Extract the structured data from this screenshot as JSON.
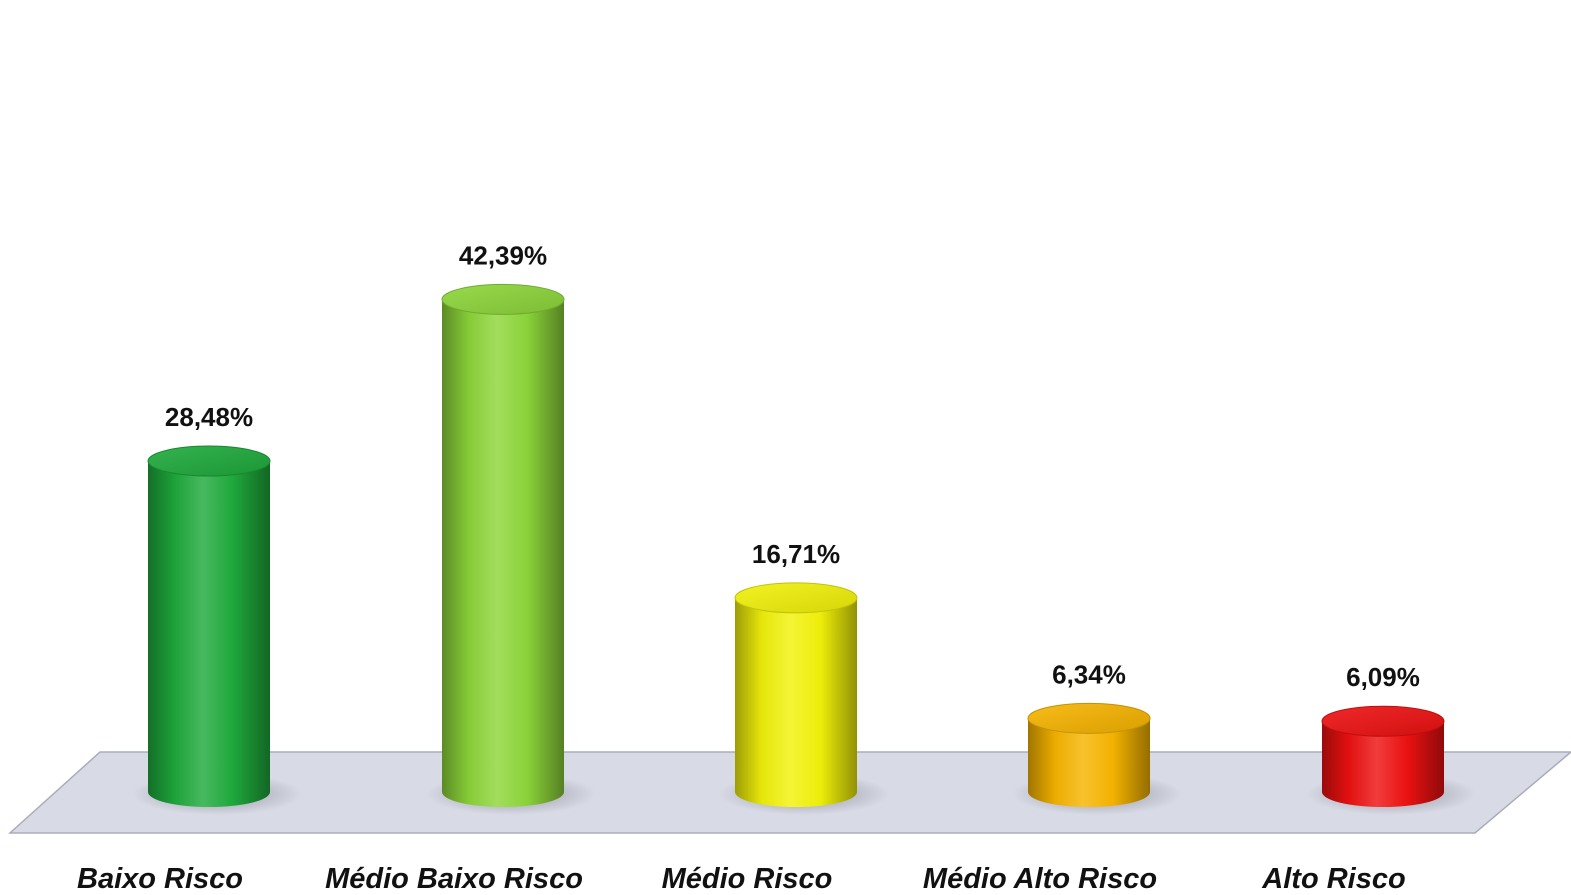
{
  "chart_data": {
    "type": "bar",
    "categories": [
      "Baixo Risco",
      "Médio Baixo Risco",
      "Médio Risco",
      "Médio Alto Risco",
      "Alto Risco"
    ],
    "values": [
      28.48,
      42.39,
      16.71,
      6.34,
      6.09
    ],
    "value_labels": [
      "28,48%",
      "42,39%",
      "16,71%",
      "6,34%",
      "6,09%"
    ],
    "colors": [
      "#1faa3c",
      "#8dd63a",
      "#f2f20a",
      "#f7b500",
      "#ee1111"
    ],
    "title": "",
    "xlabel": "",
    "ylabel": "",
    "ylim": [
      0,
      45
    ],
    "grid": false,
    "legend": "none",
    "style": "3d-cylinder"
  }
}
